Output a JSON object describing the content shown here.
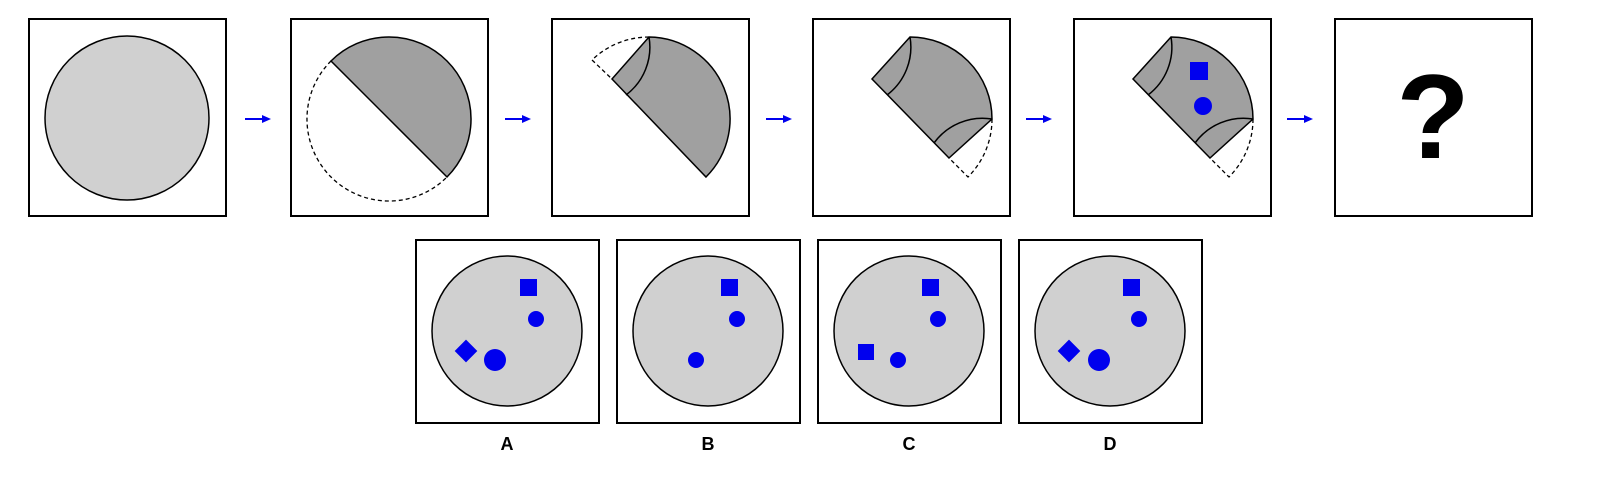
{
  "colors": {
    "disc": "#d0d0d0",
    "folded": "#a0a0a0",
    "line": "#000000",
    "marker": "#0000ee",
    "arrow": "#0000ee",
    "background": "#ffffff"
  },
  "sequence": {
    "steps": [
      {
        "name": "step-1-full-circle"
      },
      {
        "name": "step-2-half-fold"
      },
      {
        "name": "step-3-corner-fold"
      },
      {
        "name": "step-4-second-corner-fold"
      },
      {
        "name": "step-5-punched-holes"
      }
    ],
    "question_label": "?"
  },
  "options": [
    {
      "label": "A",
      "holes": [
        "square",
        "circle",
        "diamond",
        "large-circle"
      ]
    },
    {
      "label": "B",
      "holes": [
        "square",
        "circle",
        "circle"
      ]
    },
    {
      "label": "C",
      "holes": [
        "square",
        "circle",
        "square",
        "circle"
      ]
    },
    {
      "label": "D",
      "holes": [
        "square",
        "circle",
        "diamond",
        "large-circle"
      ]
    }
  ]
}
